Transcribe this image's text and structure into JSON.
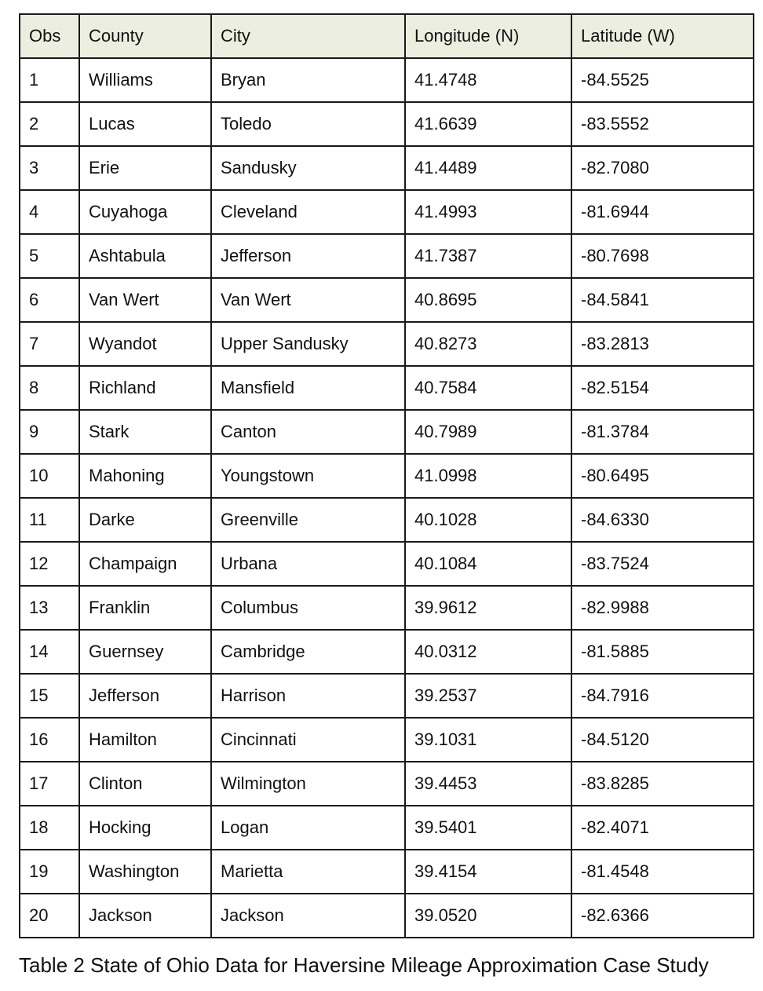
{
  "table": {
    "columns": [
      "Obs",
      "County",
      "City",
      "Longitude (N)",
      "Latitude (W)"
    ],
    "rows": [
      [
        "1",
        "Williams",
        "Bryan",
        "41.4748",
        "-84.5525"
      ],
      [
        "2",
        "Lucas",
        "Toledo",
        "41.6639",
        "-83.5552"
      ],
      [
        "3",
        "Erie",
        "Sandusky",
        "41.4489",
        "-82.7080"
      ],
      [
        "4",
        "Cuyahoga",
        "Cleveland",
        "41.4993",
        "-81.6944"
      ],
      [
        "5",
        "Ashtabula",
        "Jefferson",
        "41.7387",
        "-80.7698"
      ],
      [
        "6",
        "Van Wert",
        "Van Wert",
        "40.8695",
        "-84.5841"
      ],
      [
        "7",
        "Wyandot",
        "Upper Sandusky",
        "40.8273",
        "-83.2813"
      ],
      [
        "8",
        "Richland",
        "Mansfield",
        "40.7584",
        "-82.5154"
      ],
      [
        "9",
        "Stark",
        "Canton",
        "40.7989",
        "-81.3784"
      ],
      [
        "10",
        "Mahoning",
        "Youngstown",
        "41.0998",
        "-80.6495"
      ],
      [
        "11",
        "Darke",
        "Greenville",
        "40.1028",
        "-84.6330"
      ],
      [
        "12",
        "Champaign",
        "Urbana",
        "40.1084",
        "-83.7524"
      ],
      [
        "13",
        "Franklin",
        "Columbus",
        "39.9612",
        "-82.9988"
      ],
      [
        "14",
        "Guernsey",
        "Cambridge",
        "40.0312",
        "-81.5885"
      ],
      [
        "15",
        "Jefferson",
        "Harrison",
        "39.2537",
        "-84.7916"
      ],
      [
        "16",
        "Hamilton",
        "Cincinnati",
        "39.1031",
        "-84.5120"
      ],
      [
        "17",
        "Clinton",
        "Wilmington",
        "39.4453",
        "-83.8285"
      ],
      [
        "18",
        "Hocking",
        "Logan",
        "39.5401",
        "-82.4071"
      ],
      [
        "19",
        "Washington",
        "Marietta",
        "39.4154",
        "-81.4548"
      ],
      [
        "20",
        "Jackson",
        "Jackson",
        "39.0520",
        "-82.6366"
      ]
    ]
  },
  "caption": "Table 2 State of Ohio Data for Haversine Mileage Approximation Case Study",
  "colors": {
    "header_bg": "#ecefdf",
    "border": "#1a1a1a"
  }
}
